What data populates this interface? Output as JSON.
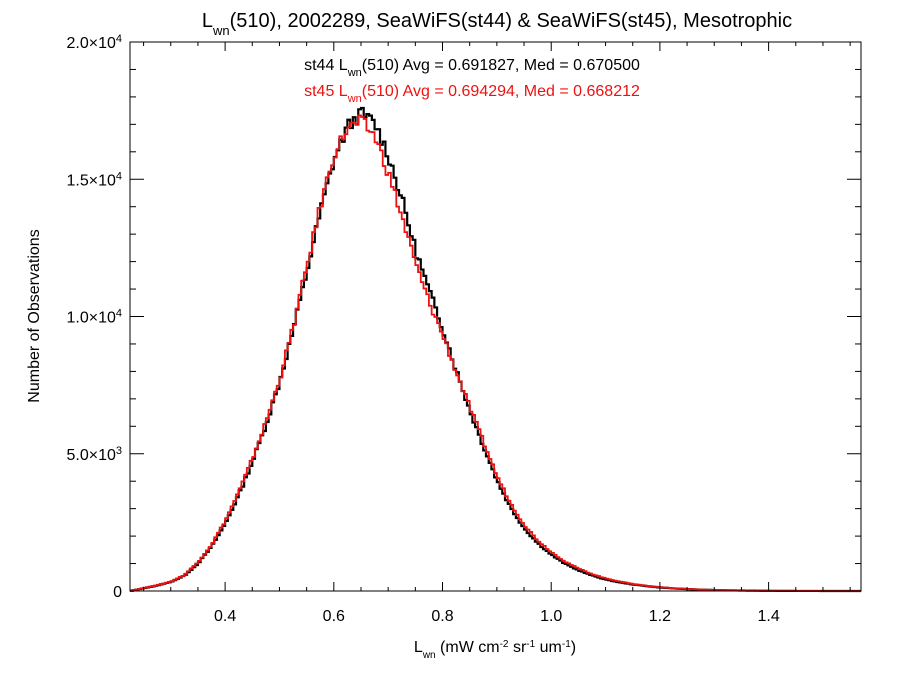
{
  "chart_data": {
    "type": "line",
    "title": {
      "parts": [
        {
          "text": "L",
          "sub": false
        },
        {
          "text": "wn",
          "sub": true
        },
        {
          "text": "(510), 2002289, SeaWiFS(st44) & SeaWiFS(st45), Mesotrophic",
          "sub": false
        }
      ]
    },
    "xlabel": {
      "parts": [
        {
          "text": "L",
          "sub": false
        },
        {
          "text": "wn",
          "sub": true
        },
        {
          "text": " (mW cm",
          "sub": false
        },
        {
          "text": "-2",
          "sup": true
        },
        {
          "text": " sr",
          "sub": false
        },
        {
          "text": "-1",
          "sup": true
        },
        {
          "text": " um",
          "sub": false
        },
        {
          "text": "-1",
          "sup": true
        },
        {
          "text": ")",
          "sub": false
        }
      ]
    },
    "ylabel": "Number of Observations",
    "xlim": [
      0.225,
      1.57
    ],
    "ylim": [
      0,
      20000
    ],
    "grid": false,
    "xticks": [
      {
        "value": 0.4,
        "label": "0.4"
      },
      {
        "value": 0.6,
        "label": "0.6"
      },
      {
        "value": 0.8,
        "label": "0.8"
      },
      {
        "value": 1.0,
        "label": "1.0"
      },
      {
        "value": 1.2,
        "label": "1.2"
      },
      {
        "value": 1.4,
        "label": "1.4"
      }
    ],
    "yticks": [
      {
        "value": 0,
        "mant": "0",
        "exp": ""
      },
      {
        "value": 5000,
        "mant": "5.0×10",
        "exp": "3"
      },
      {
        "value": 10000,
        "mant": "1.0×10",
        "exp": "4"
      },
      {
        "value": 15000,
        "mant": "1.5×10",
        "exp": "4"
      },
      {
        "value": 20000,
        "mant": "2.0×10",
        "exp": "4"
      }
    ],
    "legend": {
      "placement": "top-center",
      "entries": [
        {
          "prefix": "st44 L",
          "sub": "wn",
          "suffix": "(510) Avg = 0.691827, Med = 0.670500",
          "color": "#000000"
        },
        {
          "prefix": "st45 L",
          "sub": "wn",
          "suffix": "(510) Avg = 0.694294, Med = 0.668212",
          "color": "#ee1111"
        }
      ]
    },
    "x": [
      0.225,
      0.25,
      0.275,
      0.3,
      0.325,
      0.35,
      0.375,
      0.4,
      0.425,
      0.45,
      0.475,
      0.5,
      0.525,
      0.55,
      0.575,
      0.6,
      0.625,
      0.65,
      0.675,
      0.7,
      0.725,
      0.75,
      0.775,
      0.8,
      0.825,
      0.85,
      0.875,
      0.9,
      0.925,
      0.95,
      0.975,
      1.0,
      1.025,
      1.05,
      1.075,
      1.1,
      1.125,
      1.15,
      1.175,
      1.2,
      1.225,
      1.25,
      1.275,
      1.3,
      1.325,
      1.35,
      1.375,
      1.4,
      1.425,
      1.45,
      1.475,
      1.5,
      1.525,
      1.55,
      1.57
    ],
    "series": [
      {
        "name": "st44",
        "color": "#000000",
        "values": [
          0,
          100,
          200,
          330,
          560,
          1000,
          1620,
          2450,
          3500,
          4700,
          6050,
          7600,
          9500,
          11600,
          13800,
          15700,
          16900,
          17400,
          17050,
          15900,
          14300,
          12450,
          10950,
          9600,
          8050,
          6600,
          5300,
          4050,
          3050,
          2300,
          1750,
          1330,
          1000,
          760,
          570,
          420,
          320,
          240,
          180,
          130,
          95,
          70,
          50,
          35,
          25,
          18,
          12,
          8,
          5,
          3,
          2,
          1,
          0,
          0,
          0
        ]
      },
      {
        "name": "st45",
        "color": "#ee1111",
        "values": [
          0,
          110,
          210,
          340,
          580,
          1050,
          1680,
          2550,
          3600,
          4800,
          6150,
          7700,
          9600,
          11800,
          14000,
          15900,
          16850,
          17100,
          16600,
          15250,
          13650,
          11950,
          10550,
          9350,
          8000,
          6700,
          5450,
          4200,
          3200,
          2420,
          1850,
          1420,
          1080,
          820,
          620,
          460,
          350,
          260,
          190,
          140,
          100,
          72,
          52,
          37,
          26,
          18,
          12,
          8,
          5,
          3,
          2,
          1,
          0,
          0,
          0
        ]
      }
    ]
  }
}
